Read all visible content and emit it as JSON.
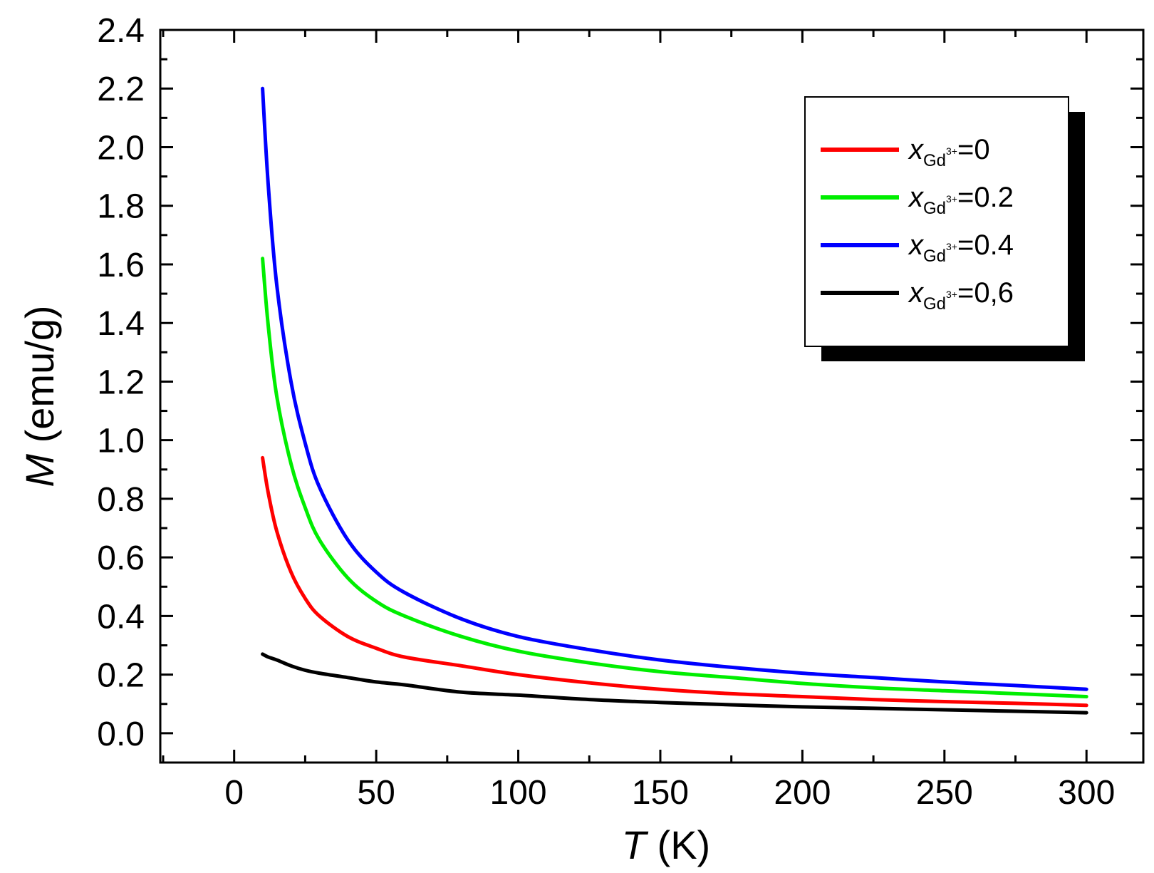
{
  "chart_data": {
    "type": "line",
    "title": "",
    "xlabel": {
      "var": "T",
      "unit": " (K)"
    },
    "ylabel": {
      "var": "M",
      "unit": " (emu/g)"
    },
    "xlim": [
      -26,
      320
    ],
    "ylim": [
      -0.1,
      2.4
    ],
    "xticks": [
      0,
      50,
      100,
      150,
      200,
      250,
      300
    ],
    "xtick_labels": [
      "0",
      "50",
      "100",
      "150",
      "200",
      "250",
      "300"
    ],
    "yticks": [
      0.0,
      0.2,
      0.4,
      0.6,
      0.8,
      1.0,
      1.2,
      1.4,
      1.6,
      1.8,
      2.0,
      2.2,
      2.4
    ],
    "ytick_labels": [
      "0.0",
      "0.2",
      "0.4",
      "0.6",
      "0.8",
      "1.0",
      "1.2",
      "1.4",
      "1.6",
      "1.8",
      "2.0",
      "2.2",
      "2.4"
    ],
    "x": [
      10,
      12,
      15,
      20,
      25,
      30,
      40,
      50,
      60,
      80,
      100,
      125,
      150,
      175,
      200,
      225,
      250,
      275,
      300
    ],
    "legend_position": "top-right",
    "series": [
      {
        "name": "x_Gd3+=0",
        "symbol": "x",
        "sub": "Gd",
        "sup": "3+",
        "value_text": "=0",
        "color": "#ff0000",
        "values": [
          0.94,
          0.82,
          0.69,
          0.55,
          0.46,
          0.4,
          0.33,
          0.29,
          0.26,
          0.23,
          0.2,
          0.172,
          0.15,
          0.135,
          0.125,
          0.115,
          0.108,
          0.102,
          0.095
        ]
      },
      {
        "name": "x_Gd3+=0.2",
        "symbol": "x",
        "sub": "Gd",
        "sup": "3+",
        "value_text": "=0.2",
        "color": "#00ee00",
        "values": [
          1.62,
          1.39,
          1.15,
          0.92,
          0.77,
          0.66,
          0.53,
          0.45,
          0.4,
          0.33,
          0.28,
          0.24,
          0.21,
          0.19,
          0.17,
          0.155,
          0.145,
          0.135,
          0.125
        ]
      },
      {
        "name": "x_Gd3+=0.4",
        "symbol": "x",
        "sub": "Gd",
        "sup": "3+",
        "value_text": "=0.4",
        "color": "#0000ff",
        "values": [
          2.2,
          1.87,
          1.53,
          1.2,
          0.99,
          0.84,
          0.66,
          0.55,
          0.48,
          0.39,
          0.33,
          0.285,
          0.25,
          0.225,
          0.205,
          0.19,
          0.175,
          0.163,
          0.15
        ]
      },
      {
        "name": "x_Gd3+=0.6",
        "symbol": "x",
        "sub": "Gd",
        "sup": "3+",
        "value_text": "=0,6",
        "color": "#000000",
        "values": [
          0.27,
          0.26,
          0.25,
          0.23,
          0.215,
          0.205,
          0.19,
          0.175,
          0.165,
          0.14,
          0.13,
          0.115,
          0.105,
          0.097,
          0.09,
          0.085,
          0.08,
          0.075,
          0.07
        ]
      }
    ]
  }
}
